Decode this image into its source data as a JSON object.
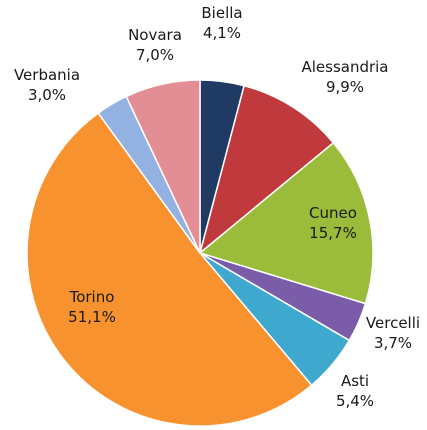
{
  "chart_data": {
    "type": "pie",
    "categories": [
      "Biella",
      "Alessandria",
      "Cuneo",
      "Vercelli",
      "Asti",
      "Torino",
      "Verbania",
      "Novara"
    ],
    "values": [
      4.1,
      9.9,
      15.7,
      3.7,
      5.4,
      51.1,
      3.0,
      7.0
    ],
    "value_labels": [
      "4,1%",
      "9,9%",
      "15,7%",
      "3,7%",
      "5,4%",
      "51,1%",
      "3,0%",
      "7,0%"
    ],
    "colors": [
      "#1f3b63",
      "#c0393d",
      "#9bbb3b",
      "#7a5ca8",
      "#3ea8cf",
      "#f7922f",
      "#93b2e2",
      "#e38e95"
    ]
  }
}
